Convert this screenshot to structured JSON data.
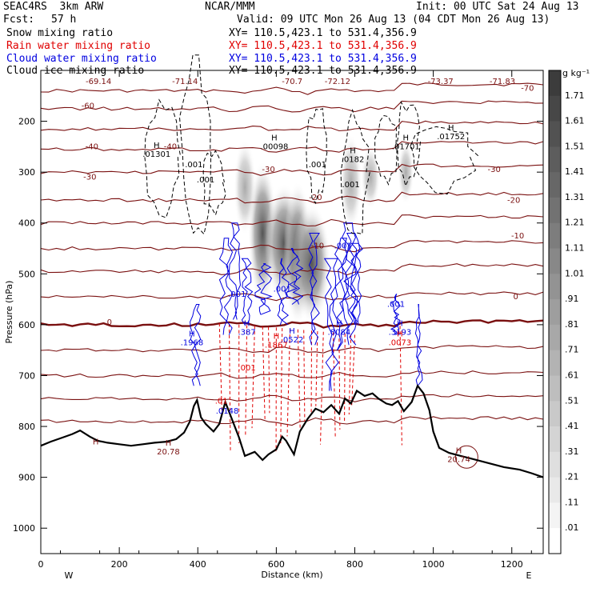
{
  "header": {
    "model": "SEAC4RS  3km ARW",
    "org": "NCAR/MMM",
    "init": "Init: 00 UTC Sat 24 Aug 13",
    "fcst_label": "Fcst:",
    "fcst_value": "57 h",
    "valid": "Valid: 09 UTC Mon 26 Aug 13 (04 CDT Mon 26 Aug 13)"
  },
  "fields": [
    {
      "name": "Snow mixing ratio",
      "xy": "XY= 110.5,423.1 to 531.4,356.9",
      "color": "#000000"
    },
    {
      "name": "Rain water mixing ratio",
      "xy": "XY= 110.5,423.1 to 531.4,356.9",
      "color": "#e00000"
    },
    {
      "name": "Cloud water mixing ratio",
      "xy": "XY= 110.5,423.1 to 531.4,356.9",
      "color": "#0000e0"
    },
    {
      "name": "Cloud ice mixing ratio",
      "xy": "XY= 110.5,423.1 to 531.4,356.9",
      "color": "#000000"
    }
  ],
  "colorbar": {
    "unit": "g kg⁻¹",
    "labels": [
      "1.71",
      "1.61",
      "1.51",
      "1.41",
      "1.31",
      "1.21",
      "1.11",
      "1.01",
      ".91",
      ".81",
      ".71",
      ".61",
      ".51",
      ".41",
      ".31",
      ".21",
      ".11",
      ".01"
    ]
  },
  "chart_data": {
    "type": "heatmap",
    "title": "",
    "xlabel": "Distance (km)",
    "ylabel": "Pressure (hPa)",
    "xlim": [
      0,
      1280
    ],
    "ylim": [
      1050,
      100
    ],
    "x_ticks": [
      0,
      200,
      400,
      600,
      800,
      1000,
      1200
    ],
    "y_ticks": [
      200,
      300,
      400,
      500,
      600,
      700,
      800,
      900,
      1000
    ],
    "x_end_labels": {
      "left": "W",
      "right": "E"
    },
    "temperature_contour_labels": [
      {
        "label": "-70",
        "x": 1240,
        "p": 140
      },
      {
        "label": "-60",
        "x": 120,
        "p": 175
      },
      {
        "label": "-40",
        "x": 130,
        "p": 255
      },
      {
        "label": "-40",
        "x": 330,
        "p": 255
      },
      {
        "label": "-30",
        "x": 125,
        "p": 315
      },
      {
        "label": "-30",
        "x": 580,
        "p": 300
      },
      {
        "label": "-30",
        "x": 1155,
        "p": 300
      },
      {
        "label": "-20",
        "x": 700,
        "p": 355
      },
      {
        "label": "-20",
        "x": 1205,
        "p": 360
      },
      {
        "label": "-10",
        "x": 705,
        "p": 450
      },
      {
        "label": "-10",
        "x": 1215,
        "p": 430
      },
      {
        "label": "0",
        "x": 175,
        "p": 600
      },
      {
        "label": "0",
        "x": 1210,
        "p": 550
      }
    ],
    "top_annotations": [
      "-69.14",
      "-71.14",
      "-70.7",
      "-72.12",
      "-73.37",
      "-71.83"
    ],
    "cloud_ice_maxima": [
      {
        "label": ".01301",
        "x": 295,
        "p": 270
      },
      {
        "label": ".00098",
        "x": 595,
        "p": 255
      },
      {
        "label": ".0182",
        "x": 795,
        "p": 280
      },
      {
        "label": ".01701",
        "x": 930,
        "p": 255
      },
      {
        "label": ".01752",
        "x": 1045,
        "p": 235
      },
      {
        "label": ".001",
        "x": 390,
        "p": 290
      },
      {
        "label": ".001",
        "x": 420,
        "p": 320
      },
      {
        "label": ".001",
        "x": 705,
        "p": 290
      },
      {
        "label": ".001",
        "x": 790,
        "p": 330
      }
    ],
    "cloud_water_maxima": [
      {
        "label": ".1968",
        "x": 385,
        "p": 640
      },
      {
        "label": ".387",
        "x": 525,
        "p": 620
      },
      {
        "label": ".0522",
        "x": 640,
        "p": 635
      },
      {
        "label": ".8084",
        "x": 760,
        "p": 620
      },
      {
        "label": ".3193",
        "x": 915,
        "p": 620
      },
      {
        "label": ".001",
        "x": 500,
        "p": 545
      },
      {
        "label": ".001",
        "x": 615,
        "p": 535
      },
      {
        "label": ".001",
        "x": 770,
        "p": 450
      },
      {
        "label": ".001",
        "x": 905,
        "p": 565
      },
      {
        "label": ".0148",
        "x": 475,
        "p": 775
      }
    ],
    "rain_water_maxima": [
      {
        "label": ".1867",
        "x": 600,
        "p": 645
      },
      {
        "label": ".0073",
        "x": 915,
        "p": 640
      },
      {
        "label": ".001",
        "x": 525,
        "p": 690
      },
      {
        "label": ".01",
        "x": 460,
        "p": 755
      }
    ],
    "surface_temperature_maxima": [
      {
        "label": "H",
        "x": 140,
        "p": 835
      },
      {
        "label": "20.78",
        "x": 325,
        "p": 855
      },
      {
        "label": "20.74",
        "x": 1065,
        "p": 870
      }
    ],
    "snow_core_columns_km": [
      565,
      620,
      655,
      690
    ]
  }
}
